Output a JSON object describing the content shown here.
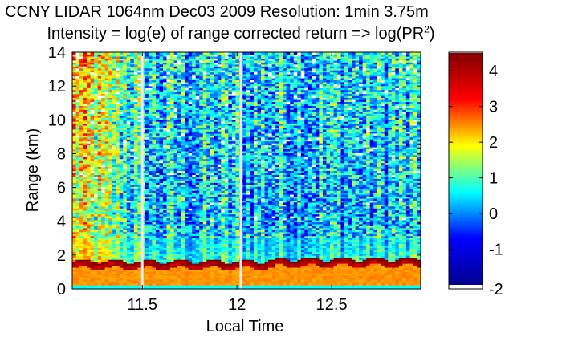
{
  "chart_data": {
    "type": "heatmap",
    "title": "CCNY LIDAR 1064nm Dec03 2009 Resolution: 1min 3.75m",
    "subtitle_prefix": "Intensity = log(e) of range corrected return => log(PR",
    "subtitle_sup": "2",
    "subtitle_suffix": ")",
    "xlabel": "Local Time",
    "ylabel": "Range (km)",
    "xlim": [
      11.13,
      12.97
    ],
    "ylim": [
      0,
      14
    ],
    "xticks": [
      11.5,
      12,
      12.5
    ],
    "xtick_labels": [
      "11.5",
      "12",
      "12.5"
    ],
    "yticks": [
      0,
      2,
      4,
      6,
      8,
      10,
      12,
      14
    ],
    "ytick_labels": [
      "0",
      "2",
      "4",
      "6",
      "8",
      "10",
      "12",
      "14"
    ],
    "colorbar": {
      "range": [
        -2,
        4.5
      ],
      "ticks": [
        -2,
        -1,
        0,
        1,
        2,
        3,
        4
      ],
      "tick_labels": [
        "-2",
        "-1",
        "0",
        "1",
        "2",
        "3",
        "4"
      ]
    },
    "colormap": [
      "#00008f",
      "#0000ff",
      "#00ffff",
      "#ffff00",
      "#ff0000",
      "#800000"
    ],
    "data_gaps_local_time": [
      11.5,
      12.02
    ],
    "boundary_layer_top_km": 1.5,
    "near_field_layer_km": [
      0.2,
      1.3
    ]
  }
}
